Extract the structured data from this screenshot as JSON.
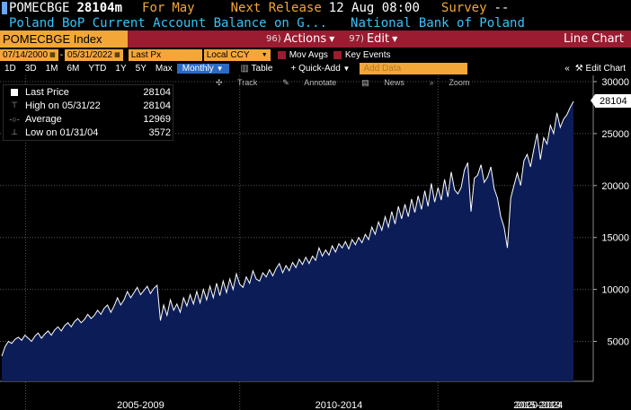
{
  "header": {
    "ticker": "POMECBGE",
    "last": "28104m",
    "period_label": "For",
    "period": "May",
    "next_release_label": "Next Release",
    "next_release": "12 Aug 08:00",
    "survey_label": "Survey",
    "survey": "--",
    "description": "Poland BoP Current Account Balance on G...",
    "source": "National Bank of Poland"
  },
  "command": {
    "security": "POMECBGE Index",
    "actions_num": "96)",
    "actions_label": "Actions",
    "edit_num": "97)",
    "edit_label": "Edit",
    "chart_type": "Line Chart"
  },
  "range": {
    "start": "07/14/2000",
    "end": "05/31/2022",
    "field": "Last Px",
    "currency": "Local CCY",
    "mov_avgs": "Mov Avgs",
    "key_events": "Key Events"
  },
  "periods": {
    "items": [
      "1D",
      "3D",
      "1M",
      "6M",
      "YTD",
      "1Y",
      "5Y",
      "Max"
    ],
    "frequency": "Monthly",
    "table": "Table",
    "quick_add": "+ Quick-Add",
    "add_data_placeholder": "Add Data",
    "edit_chart": "Edit Chart"
  },
  "tools": {
    "track": "Track",
    "annotate": "Annotate",
    "news": "News",
    "zoom": "Zoom"
  },
  "legend": {
    "items": [
      {
        "label": "Last Price",
        "value": "28104"
      },
      {
        "label": "High on 05/31/22",
        "value": "28104"
      },
      {
        "label": "Average",
        "value": "12969"
      },
      {
        "label": "Low on 01/31/04",
        "value": "3572"
      }
    ]
  },
  "last_flag": "28104",
  "colors": {
    "area": "#0c1c56",
    "line": "#ffffff",
    "amber": "#f3a738",
    "menubar": "#9b1b30",
    "cyan": "#33c5ff"
  },
  "chart_data": {
    "type": "area",
    "ylim": [
      0,
      30000
    ],
    "yticks": [
      "5000",
      "10000",
      "15000",
      "20000",
      "25000",
      "30000"
    ],
    "xticks": [
      "2005-2009",
      "2010-2014",
      "2015-2019",
      "2020-2024"
    ],
    "x_start": "2004-01",
    "x_end": "2022-05",
    "series": [
      {
        "values": [
          3572,
          4500,
          5000,
          4800,
          5200,
          5400,
          5100,
          5600,
          5300,
          5000,
          5500,
          5800,
          5300,
          5700,
          6000,
          5600,
          6100,
          6400,
          6000,
          6500,
          6800,
          6400,
          6900,
          7200,
          6800,
          7100,
          7600,
          7200,
          7500,
          8000,
          7600,
          8200,
          8500,
          7800,
          8400,
          9200,
          8500,
          9000,
          9800,
          9200,
          9700,
          10200,
          9500,
          9900,
          10300,
          9600,
          10100,
          10400,
          7000,
          8500,
          7500,
          9000,
          8000,
          8600,
          7800,
          9200,
          8400,
          9500,
          8600,
          9800,
          8700,
          10000,
          9000,
          10300,
          9200,
          10600,
          9400,
          10800,
          9700,
          11000,
          10000,
          11500,
          10500,
          10200,
          11200,
          10600,
          11800,
          11000,
          10800,
          11600,
          11200,
          11900,
          11300,
          12000,
          12500,
          11600,
          12300,
          11800,
          12600,
          12100,
          12900,
          12400,
          13100,
          12500,
          13200,
          12800,
          14000,
          13200,
          13800,
          13300,
          14200,
          13600,
          14400,
          14000,
          14600,
          13900,
          14800,
          14300,
          15000,
          14500,
          15300,
          14800,
          16000,
          15300,
          16500,
          15700,
          17000,
          16000,
          17500,
          16300,
          18000,
          16800,
          18200,
          17000,
          18700,
          17400,
          19000,
          17700,
          19500,
          18000,
          20200,
          18400,
          19800,
          18600,
          20600,
          18900,
          21300,
          19600,
          19200,
          19800,
          21500,
          22200,
          17500,
          20700,
          21000,
          22000,
          20300,
          20800,
          21800,
          19700,
          18800,
          17000,
          16000,
          14000,
          18800,
          20000,
          21200,
          20000,
          22400,
          23000,
          21800,
          23500,
          25000,
          22500,
          24600,
          24000,
          25800,
          25000,
          27000,
          25600,
          26400,
          26800,
          27500,
          28104
        ]
      }
    ]
  }
}
